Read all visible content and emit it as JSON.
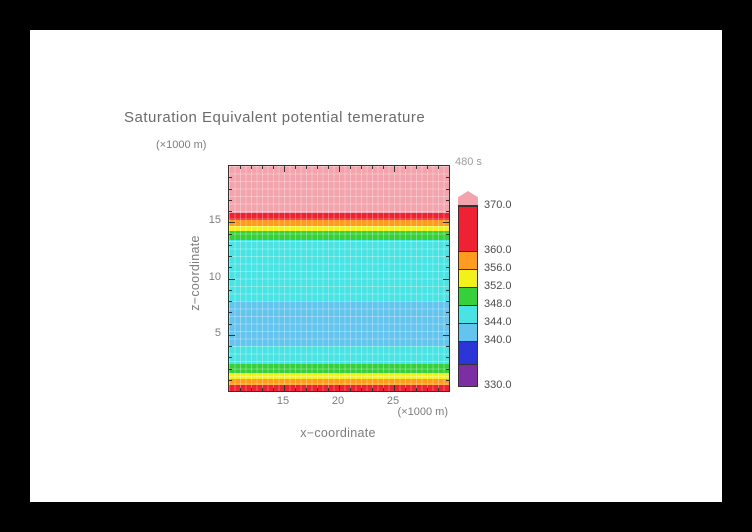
{
  "title": "Saturation Equivalent potential temerature",
  "time_label": "480 s",
  "axes": {
    "x_label": "x−coordinate",
    "x_unit": "(×1000 m)",
    "y_label": "z−coordinate",
    "y_unit": "(×1000 m)"
  },
  "colors": {
    "frame_bg": "#000000",
    "page_bg": "#ffffff",
    "title_text": "#6b6b6b",
    "axis_text": "#7c7c7c",
    "time_text": "#9c9c9c",
    "colorbar_text": "#4c4c4c",
    "plot_border": "#333333"
  },
  "chart_data": {
    "type": "heatmap",
    "title": "Saturation Equivalent potential temerature",
    "time_annotation": "480 s",
    "xlabel": "x−coordinate",
    "x_unit": "×1000 m",
    "ylabel": "z−coordinate",
    "y_unit": "×1000 m",
    "xlim": [
      10,
      30
    ],
    "ylim": [
      0,
      20
    ],
    "x_ticks": [
      15,
      20,
      25
    ],
    "y_ticks": [
      5,
      10,
      15
    ],
    "x_minor_step": 1,
    "y_minor_step": 1,
    "grid": true,
    "field_is_horizontally_uniform": true,
    "vertical_profile_bands": [
      {
        "z_from": 15.8,
        "z_to": 20.0,
        "value_range": "> 370",
        "color": "#f2a3ac"
      },
      {
        "z_from": 15.2,
        "z_to": 15.8,
        "value_range": "360–370",
        "color": "#ee2232"
      },
      {
        "z_from": 14.7,
        "z_to": 15.2,
        "value_range": "356–360",
        "color": "#ff9b1e"
      },
      {
        "z_from": 14.2,
        "z_to": 14.7,
        "value_range": "352–356",
        "color": "#f2f21a"
      },
      {
        "z_from": 13.4,
        "z_to": 14.2,
        "value_range": "348–352",
        "color": "#35d03a"
      },
      {
        "z_from": 8.0,
        "z_to": 13.4,
        "value_range": "344–348",
        "color": "#49e3e3"
      },
      {
        "z_from": 4.0,
        "z_to": 8.0,
        "value_range": "340–344",
        "color": "#63c4ee"
      },
      {
        "z_from": 2.4,
        "z_to": 4.0,
        "value_range": "344–348",
        "color": "#49e3e3"
      },
      {
        "z_from": 1.6,
        "z_to": 2.4,
        "value_range": "348–352",
        "color": "#35d03a"
      },
      {
        "z_from": 1.1,
        "z_to": 1.6,
        "value_range": "352–356",
        "color": "#f2f21a"
      },
      {
        "z_from": 0.5,
        "z_to": 1.1,
        "value_range": "356–360",
        "color": "#ff9b1e"
      },
      {
        "z_from": 0.0,
        "z_to": 0.5,
        "value_range": "360–370",
        "color": "#ee2232"
      }
    ],
    "colorbar": {
      "orientation": "vertical",
      "min": 330,
      "max": 370,
      "segments_bottom_to_top": [
        {
          "from": 330,
          "to": 335,
          "color": "#7c2fa2"
        },
        {
          "from": 335,
          "to": 340,
          "color": "#2b35d8"
        },
        {
          "from": 340,
          "to": 344,
          "color": "#63c4ee"
        },
        {
          "from": 344,
          "to": 348,
          "color": "#49e3e3"
        },
        {
          "from": 348,
          "to": 352,
          "color": "#35d03a"
        },
        {
          "from": 352,
          "to": 356,
          "color": "#f2f21a"
        },
        {
          "from": 356,
          "to": 360,
          "color": "#ff9b1e"
        },
        {
          "from": 360,
          "to": 370,
          "color": "#ee2232"
        }
      ],
      "arrow_color": "#f2a3ac",
      "arrow_range": "> 370",
      "labels": [
        {
          "value": 370,
          "text": "370.0"
        },
        {
          "value": 360,
          "text": "360.0"
        },
        {
          "value": 356,
          "text": "356.0"
        },
        {
          "value": 352,
          "text": "352.0"
        },
        {
          "value": 348,
          "text": "348.0"
        },
        {
          "value": 344,
          "text": "344.0"
        },
        {
          "value": 340,
          "text": "340.0"
        },
        {
          "value": 330,
          "text": "330.0"
        }
      ]
    }
  }
}
